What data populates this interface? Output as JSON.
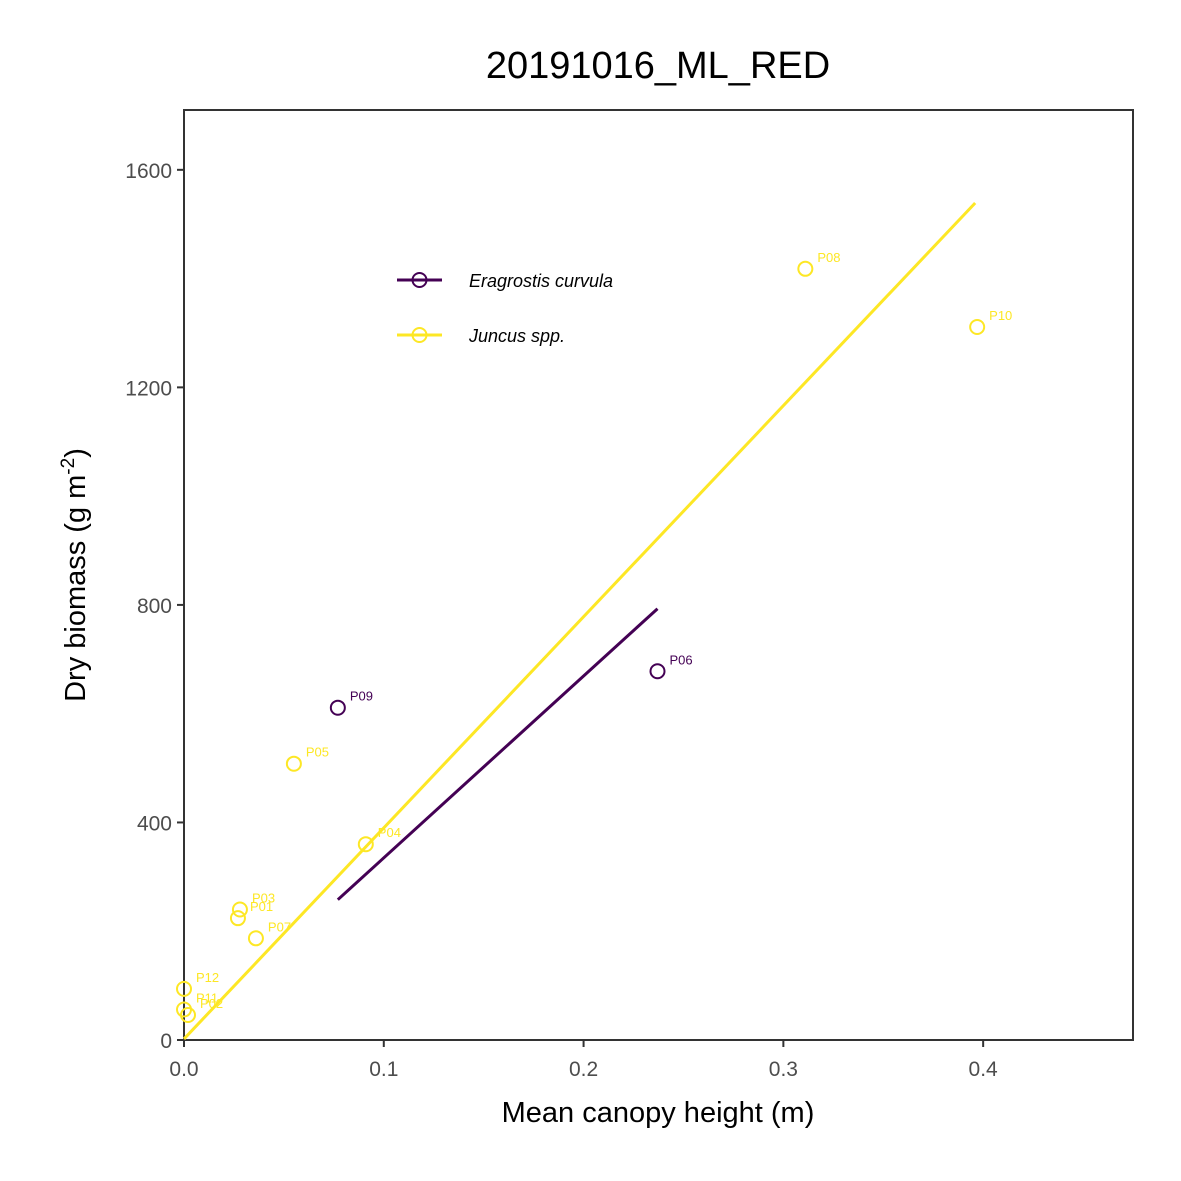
{
  "chart_data": {
    "type": "scatter",
    "title": "20191016_ML_RED",
    "xlabel": "Mean canopy height (m)",
    "ylabel_main": "Dry biomass (g m",
    "ylabel_sup": "-2",
    "ylabel_close": ")",
    "xlim": [
      0.0,
      0.475
    ],
    "ylim": [
      0,
      1710
    ],
    "x_ticks": [
      {
        "value": 0.0,
        "label": "0.0"
      },
      {
        "value": 0.1,
        "label": "0.1"
      },
      {
        "value": 0.2,
        "label": "0.2"
      },
      {
        "value": 0.3,
        "label": "0.3"
      },
      {
        "value": 0.4,
        "label": "0.4"
      }
    ],
    "y_ticks": [
      {
        "value": 0,
        "label": "0"
      },
      {
        "value": 400,
        "label": "400"
      },
      {
        "value": 800,
        "label": "800"
      },
      {
        "value": 1200,
        "label": "1200"
      },
      {
        "value": 1600,
        "label": "1600"
      }
    ],
    "grid": false,
    "legend_position": "top-left",
    "series": [
      {
        "name": "Eragrostis curvula",
        "color": "#440154",
        "points": [
          {
            "label": "P09",
            "x": 0.077,
            "y": 611
          },
          {
            "label": "P06",
            "x": 0.237,
            "y": 678
          }
        ],
        "fit": {
          "x": [
            0.077,
            0.237
          ],
          "y": [
            258,
            793
          ]
        }
      },
      {
        "name": "Juncus spp.",
        "color": "#FDE725",
        "points": [
          {
            "label": "P08",
            "x": 0.311,
            "y": 1418
          },
          {
            "label": "P10",
            "x": 0.397,
            "y": 1311
          },
          {
            "label": "P05",
            "x": 0.055,
            "y": 508
          },
          {
            "label": "P04",
            "x": 0.091,
            "y": 360
          },
          {
            "label": "P03",
            "x": 0.028,
            "y": 240
          },
          {
            "label": "P01",
            "x": 0.027,
            "y": 224
          },
          {
            "label": "P07",
            "x": 0.036,
            "y": 187
          },
          {
            "label": "P12",
            "x": 0.0,
            "y": 94
          },
          {
            "label": "P11",
            "x": 0.0,
            "y": 56
          },
          {
            "label": "P02",
            "x": 0.002,
            "y": 46
          }
        ],
        "fit": {
          "x": [
            0.0,
            0.396
          ],
          "y": [
            2,
            1539
          ]
        }
      }
    ]
  }
}
